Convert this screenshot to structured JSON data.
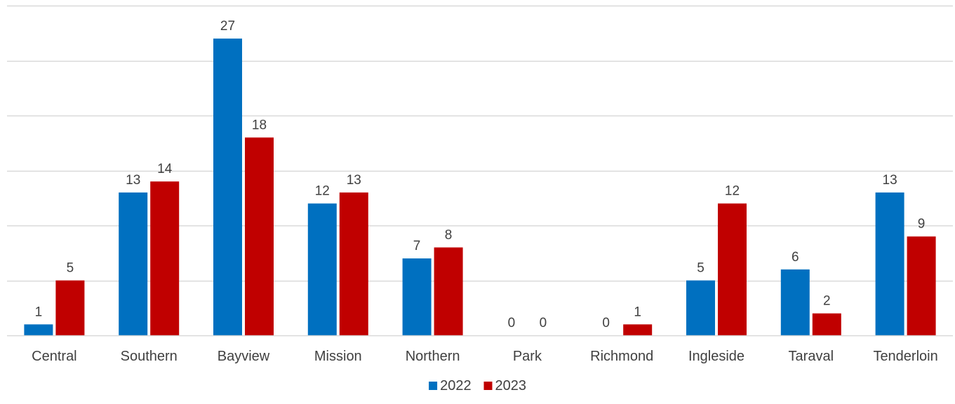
{
  "chart_data": {
    "type": "bar",
    "title": "",
    "xlabel": "",
    "ylabel": "",
    "categories": [
      "Central",
      "Southern",
      "Bayview",
      "Mission",
      "Northern",
      "Park",
      "Richmond",
      "Ingleside",
      "Taraval",
      "Tenderloin"
    ],
    "series": [
      {
        "name": "2022",
        "color": "#0070C0",
        "values": [
          1,
          13,
          27,
          12,
          7,
          0,
          0,
          5,
          6,
          13
        ]
      },
      {
        "name": "2023",
        "color": "#C00000",
        "values": [
          5,
          14,
          18,
          13,
          8,
          0,
          1,
          12,
          2,
          9
        ]
      }
    ],
    "ylim": [
      0,
      30
    ],
    "y_major_unit": 5,
    "gridlines": true,
    "y_tick_labels_visible": false,
    "data_labels": true,
    "legend_position": "bottom",
    "colors": {
      "gridline": "#D9D9D9",
      "text": "#404040"
    }
  }
}
